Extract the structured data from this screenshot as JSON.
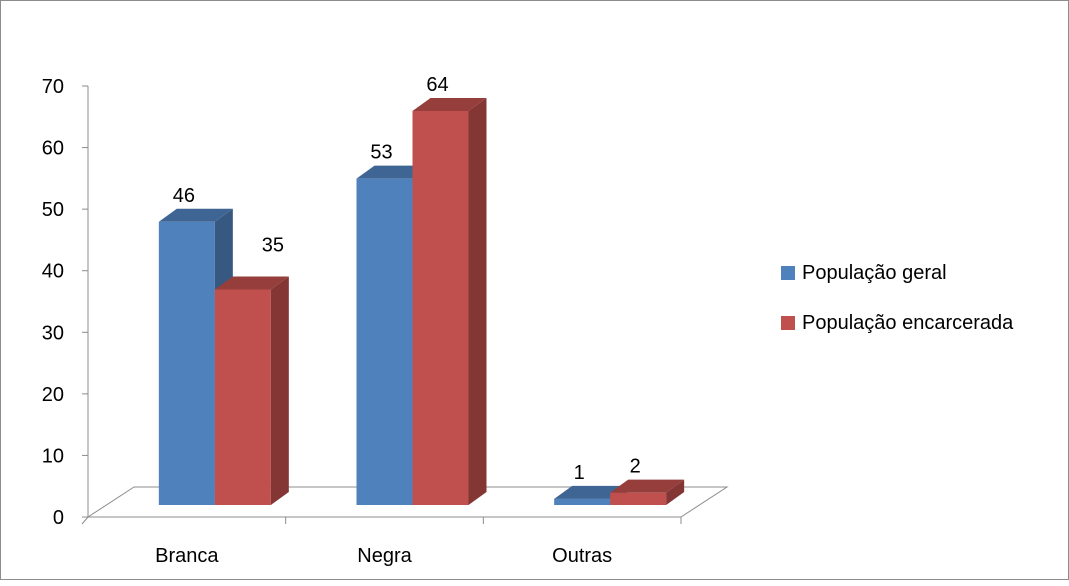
{
  "chart_data": {
    "type": "bar",
    "categories": [
      "Branca",
      "Negra",
      "Outras"
    ],
    "series": [
      {
        "name": "População geral",
        "values": [
          46,
          53,
          1
        ],
        "color": "#4f81bd"
      },
      {
        "name": "População encarcerada",
        "values": [
          35,
          64,
          2
        ],
        "color": "#c0504d"
      }
    ],
    "ylim": [
      0,
      70
    ],
    "yticks": [
      0,
      10,
      20,
      30,
      40,
      50,
      60,
      70
    ],
    "grid": false,
    "legend_position": "right",
    "style": "3d-clustered-column"
  }
}
